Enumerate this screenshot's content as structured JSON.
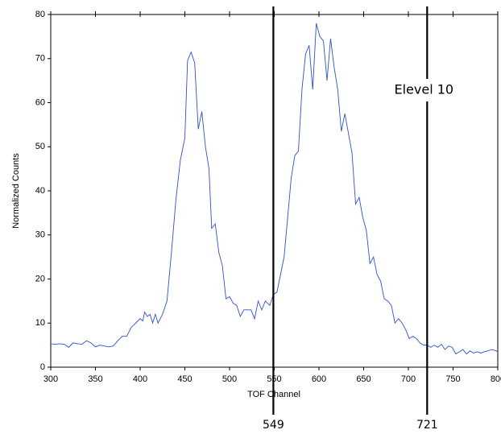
{
  "chart_data": {
    "type": "line",
    "x_label": "TOF Channel",
    "y_label": "Normalized Counts",
    "x": [
      300,
      305,
      310,
      315,
      320,
      325,
      330,
      335,
      340,
      345,
      350,
      355,
      360,
      365,
      370,
      375,
      380,
      385,
      390,
      395,
      400,
      403,
      405,
      408,
      411,
      414,
      417,
      420,
      425,
      430,
      435,
      440,
      445,
      450,
      453,
      457,
      461,
      465,
      469,
      473,
      477,
      480,
      484,
      488,
      492,
      496,
      500,
      504,
      508,
      512,
      516,
      520,
      524,
      528,
      532,
      536,
      540,
      545,
      549,
      553,
      557,
      561,
      565,
      569,
      573,
      577,
      581,
      585,
      589,
      593,
      597,
      601,
      605,
      609,
      613,
      617,
      621,
      625,
      629,
      633,
      637,
      641,
      645,
      649,
      653,
      657,
      661,
      665,
      669,
      673,
      677,
      681,
      685,
      689,
      693,
      697,
      701,
      705,
      709,
      713,
      717,
      721,
      725,
      729,
      733,
      737,
      741,
      745,
      749,
      753,
      757,
      761,
      765,
      769,
      773,
      777,
      781,
      785,
      789,
      793,
      797,
      800
    ],
    "series": [
      {
        "name": "counts",
        "color": "#2f4fd8",
        "values": [
          5.3,
          5.2,
          5.3,
          5.2,
          4.5,
          5.5,
          5.3,
          5.2,
          6.0,
          5.5,
          4.6,
          5.0,
          4.8,
          4.6,
          4.8,
          6.0,
          7.0,
          7.0,
          9.0,
          10.0,
          11.0,
          10.5,
          12.5,
          11.5,
          12.0,
          10.0,
          12.0,
          10.0,
          12.0,
          15.0,
          26,
          38,
          47,
          52,
          69.5,
          71.5,
          69,
          54,
          58,
          50,
          45,
          31.5,
          32.5,
          26,
          23,
          15.5,
          16,
          14.5,
          14,
          11.5,
          13,
          13,
          13,
          11,
          15,
          13,
          15,
          14,
          16.5,
          17,
          21,
          25,
          34,
          43,
          48,
          49,
          63,
          71,
          73,
          63,
          78,
          75,
          74,
          65,
          74.5,
          68,
          63,
          53.5,
          57.5,
          53,
          48.5,
          37,
          38.5,
          34,
          31,
          23.5,
          25,
          21,
          19.5,
          15.5,
          15,
          14,
          10,
          11,
          10,
          8.5,
          6.5,
          7,
          6.5,
          5.5,
          5.0,
          5.0,
          4.5,
          5.0,
          4.5,
          5.2,
          4.0,
          4.8,
          4.5,
          3.0,
          3.5,
          4.0,
          3.0,
          3.7,
          3.2,
          3.5,
          3.2,
          3.5,
          3.7,
          4.0,
          3.8,
          3.5
        ]
      }
    ],
    "xlim": [
      300,
      800
    ],
    "ylim": [
      0,
      80
    ],
    "xticks": [
      300,
      350,
      400,
      450,
      500,
      550,
      600,
      650,
      700,
      750,
      800
    ],
    "yticks": [
      0,
      10,
      20,
      30,
      40,
      50,
      60,
      70,
      80
    ],
    "markers": [
      549,
      721
    ],
    "annotation": "Elevel 10"
  }
}
